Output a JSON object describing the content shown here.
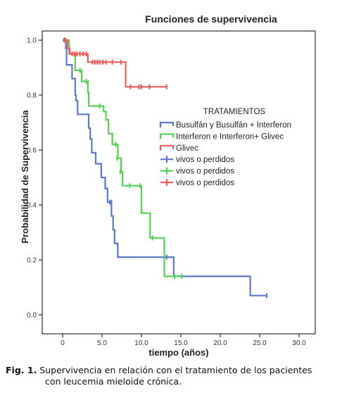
{
  "chart_data": {
    "type": "line",
    "step": true,
    "title": "Funciones de supervivencia",
    "xlabel": "tiempo (años)",
    "ylabel": "Probabilidad de Supervivencia",
    "xlim": [
      0,
      30
    ],
    "ylim": [
      0,
      1
    ],
    "xticks": [
      "0",
      "5.0",
      "10.0",
      "15.0",
      "20.0",
      "25.0",
      "30.0"
    ],
    "yticks": [
      "0.0",
      "0.2",
      "0.4",
      "0.6",
      "0.8",
      "1.0"
    ],
    "legend": {
      "title": "TRATAMIENTOS",
      "placement": "right-center",
      "entries": [
        "Busulfán y Busulfán + Interferon",
        "Interferon e Interferon+ Glivec",
        "Glivec",
        "vivos o perdidos",
        "vivos o perdidos",
        "vivos o perdidos"
      ]
    },
    "series": [
      {
        "name": "Busulfán y Busulfán + Interferon",
        "color": "#5b78c9",
        "steps": [
          [
            0,
            1.0
          ],
          [
            0.4,
            0.97
          ],
          [
            0.5,
            0.91
          ],
          [
            1.2,
            0.86
          ],
          [
            1.6,
            0.8
          ],
          [
            1.7,
            0.78
          ],
          [
            1.9,
            0.73
          ],
          [
            3.3,
            0.68
          ],
          [
            3.5,
            0.64
          ],
          [
            3.7,
            0.59
          ],
          [
            4.2,
            0.55
          ],
          [
            4.9,
            0.5
          ],
          [
            5.4,
            0.46
          ],
          [
            5.7,
            0.41
          ],
          [
            6.2,
            0.36
          ],
          [
            6.4,
            0.31
          ],
          [
            6.6,
            0.26
          ],
          [
            7.0,
            0.21
          ],
          [
            14.1,
            0.14
          ],
          [
            23.8,
            0.07
          ],
          [
            25.9,
            0.07
          ]
        ],
        "censored": [
          [
            0.2,
            1.0
          ],
          [
            6.0,
            0.41
          ],
          [
            6.2,
            0.41
          ],
          [
            13.2,
            0.21
          ],
          [
            25.9,
            0.07
          ]
        ]
      },
      {
        "name": "Interferon e Interferon+ Glivec",
        "color": "#54d254",
        "steps": [
          [
            0,
            1.0
          ],
          [
            0.8,
            0.95
          ],
          [
            1.6,
            0.89
          ],
          [
            2.4,
            0.85
          ],
          [
            3.2,
            0.81
          ],
          [
            3.3,
            0.76
          ],
          [
            5.2,
            0.74
          ],
          [
            5.5,
            0.71
          ],
          [
            5.8,
            0.66
          ],
          [
            6.3,
            0.62
          ],
          [
            7.0,
            0.57
          ],
          [
            7.4,
            0.52
          ],
          [
            7.6,
            0.47
          ],
          [
            10.0,
            0.37
          ],
          [
            11.1,
            0.28
          ],
          [
            12.9,
            0.14
          ],
          [
            15.1,
            0.14
          ]
        ],
        "censored": [
          [
            0.4,
            1.0
          ],
          [
            2.2,
            0.89
          ],
          [
            3.0,
            0.85
          ],
          [
            4.7,
            0.76
          ],
          [
            6.7,
            0.62
          ],
          [
            6.9,
            0.57
          ],
          [
            7.3,
            0.52
          ],
          [
            8.5,
            0.47
          ],
          [
            9.8,
            0.47
          ],
          [
            11.4,
            0.28
          ],
          [
            14.2,
            0.14
          ],
          [
            15.1,
            0.14
          ]
        ]
      },
      {
        "name": "Glivec",
        "color": "#ee5a5a",
        "steps": [
          [
            0,
            1.0
          ],
          [
            0.6,
            0.97
          ],
          [
            0.9,
            0.95
          ],
          [
            3.2,
            0.92
          ],
          [
            8.0,
            0.83
          ],
          [
            13.2,
            0.83
          ]
        ],
        "censored": [
          [
            0.3,
            1.0
          ],
          [
            1.2,
            0.95
          ],
          [
            1.5,
            0.95
          ],
          [
            1.8,
            0.95
          ],
          [
            2.2,
            0.95
          ],
          [
            2.6,
            0.95
          ],
          [
            3.0,
            0.95
          ],
          [
            3.8,
            0.92
          ],
          [
            4.1,
            0.92
          ],
          [
            4.4,
            0.92
          ],
          [
            4.7,
            0.92
          ],
          [
            5.1,
            0.92
          ],
          [
            5.5,
            0.92
          ],
          [
            6.3,
            0.92
          ],
          [
            7.4,
            0.92
          ],
          [
            8.6,
            0.83
          ],
          [
            9.7,
            0.83
          ],
          [
            10.0,
            0.83
          ],
          [
            11.0,
            0.83
          ],
          [
            13.2,
            0.83
          ]
        ]
      }
    ]
  },
  "caption": {
    "label": "Fig. 1.",
    "line1": "Supervivencia en relación con el tratamiento de los pacientes",
    "line2": "con leucemia mieloide crónica."
  }
}
